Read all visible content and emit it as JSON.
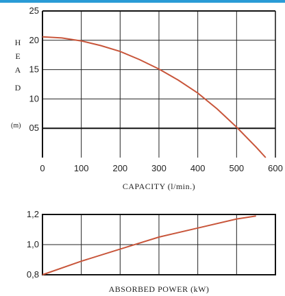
{
  "colors": {
    "accent": "#2a9bd6",
    "curve": "#c8553a",
    "axis": "#111111",
    "grid": "#222222"
  },
  "chart_data": [
    {
      "type": "line",
      "title": "",
      "xlabel": "CAPACITY (l/min.)",
      "ylabel": "HEAD",
      "ylabel_letters": [
        "H",
        "E",
        "A",
        "D"
      ],
      "yunit": "(m)",
      "xlim": [
        0,
        600
      ],
      "ylim": [
        0,
        25
      ],
      "xticks": [
        "0",
        "100",
        "200",
        "300",
        "400",
        "500",
        "600"
      ],
      "yticks": [
        "05",
        "10",
        "15",
        "20",
        "25"
      ],
      "grid": true,
      "series": [
        {
          "x": [
            0,
            50,
            100,
            150,
            200,
            250,
            300,
            350,
            400,
            450,
            500,
            550,
            575
          ],
          "values": [
            20.6,
            20.4,
            19.9,
            19.1,
            18.1,
            16.7,
            15.1,
            13.2,
            11.0,
            8.3,
            5.2,
            1.8,
            0.0
          ]
        }
      ]
    },
    {
      "type": "line",
      "title": "",
      "xlabel": "ABSORBED POWER (kW)",
      "ylabel": "",
      "xlim": [
        0,
        600
      ],
      "ylim": [
        0.8,
        1.2
      ],
      "yticks": [
        "0,8",
        "1,0",
        "1,2"
      ],
      "grid": true,
      "series": [
        {
          "x": [
            0,
            100,
            200,
            300,
            400,
            500,
            550
          ],
          "values": [
            0.8,
            0.89,
            0.97,
            1.05,
            1.11,
            1.17,
            1.19
          ]
        }
      ]
    }
  ]
}
